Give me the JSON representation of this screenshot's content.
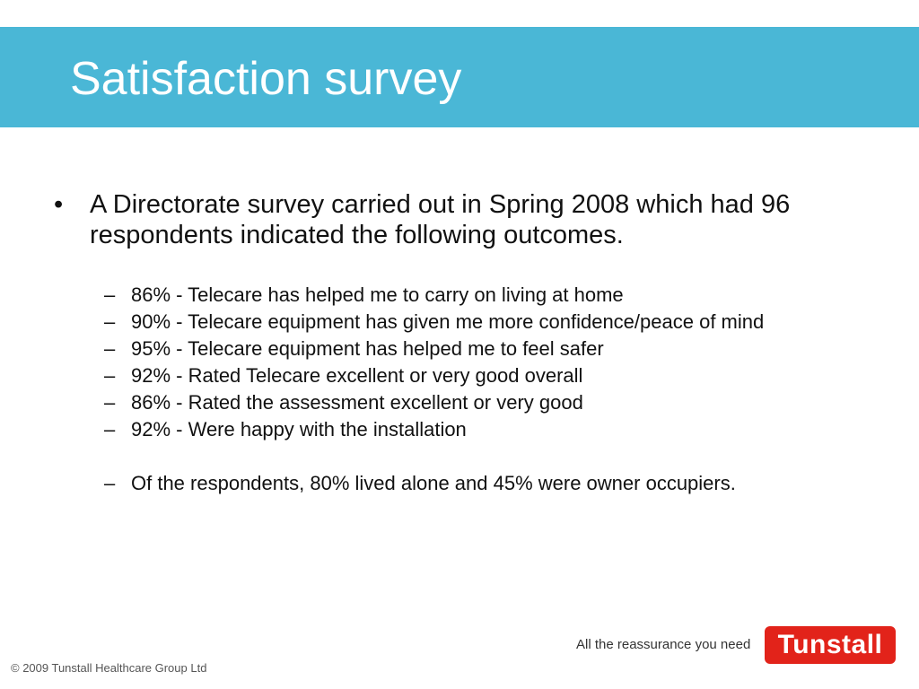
{
  "slide": {
    "title": "Satisfaction survey",
    "main_bullet": {
      "marker": "•",
      "text": "A Directorate survey carried out in Spring 2008 which had 96 respondents indicated the following outcomes."
    },
    "sub_bullets": [
      {
        "marker": "–",
        "text": "86% - Telecare has helped me to carry on living at home"
      },
      {
        "marker": "–",
        "text": "90% - Telecare equipment has given me more confidence/peace of mind"
      },
      {
        "marker": "–",
        "text": "95% - Telecare equipment has helped me to feel safer"
      },
      {
        "marker": "–",
        "text": "92% - Rated Telecare excellent or very good overall"
      },
      {
        "marker": "–",
        "text": "86% - Rated the assessment excellent or very good"
      },
      {
        "marker": "–",
        "text": "92% - Were happy with the installation"
      }
    ],
    "closing_bullet": {
      "marker": "–",
      "text": "Of the respondents, 80% lived alone and 45% were owner occupiers."
    },
    "footer": "© 2009 Tunstall Healthcare Group Ltd",
    "brand": {
      "tagline": "All the reassurance you need",
      "logo_text": "Tunstall"
    }
  },
  "colors": {
    "title_band": "#4ab7d6",
    "logo_red": "#e2231a"
  }
}
